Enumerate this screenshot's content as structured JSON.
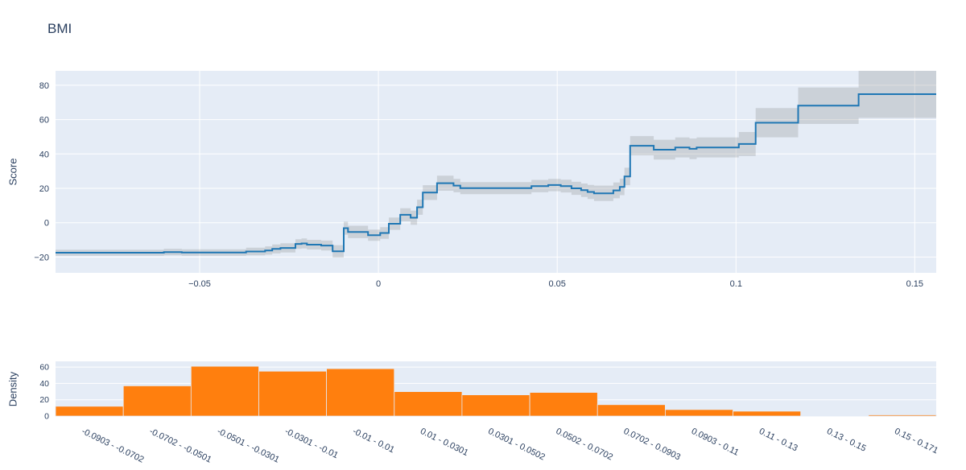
{
  "colors": {
    "line": "#1f77b4",
    "band": "rgba(128,128,128,0.25)",
    "bar": "#ff7f0e",
    "plot_bg": "#e5ecf6",
    "grid": "#ffffff",
    "text": "#2a3f5f"
  },
  "chart_data": [
    {
      "type": "line",
      "title": "BMI",
      "ylabel": "Score",
      "line_shape": "step-after",
      "legend": "none",
      "grid": "on",
      "x_range": [
        -0.0903,
        0.156
      ],
      "y_range": [
        -29.2,
        88.4
      ],
      "yticks": [
        -20,
        0,
        20,
        40,
        60,
        80
      ],
      "ytick_labels": [
        "−20",
        "0",
        "20",
        "40",
        "60",
        "80"
      ],
      "xticks": [
        -0.05,
        0,
        0.05,
        0.1,
        0.15
      ],
      "xtick_labels": [
        "−0.05",
        "0",
        "0.05",
        "0.1",
        "0.15"
      ],
      "series": [
        {
          "name": "Score",
          "x": [
            -0.0903,
            -0.06,
            -0.055,
            -0.037,
            -0.0317,
            -0.0297,
            -0.0274,
            -0.0232,
            -0.0215,
            -0.02,
            -0.016,
            -0.0128,
            -0.0097,
            -0.0085,
            -0.0029,
            0.0005,
            0.0029,
            0.0061,
            0.009,
            0.0108,
            0.0124,
            0.0164,
            0.021,
            0.0229,
            0.0428,
            0.0475,
            0.051,
            0.054,
            0.0567,
            0.0585,
            0.0603,
            0.0657,
            0.0675,
            0.0688,
            0.0704,
            0.077,
            0.083,
            0.087,
            0.089,
            0.1008,
            0.1055,
            0.1174,
            0.1343
          ],
          "y": [
            -17.5,
            -17.1,
            -17.4,
            -16.8,
            -16.2,
            -15.3,
            -14.7,
            -12.4,
            -12.1,
            -12.8,
            -13.3,
            -16.7,
            -3.2,
            -5.4,
            -7.3,
            -6.0,
            -0.6,
            4.6,
            2.9,
            9.0,
            17.5,
            23.0,
            21.6,
            20.1,
            21.3,
            21.9,
            21.3,
            20.0,
            18.9,
            17.9,
            17.1,
            18.8,
            20.8,
            26.9,
            44.8,
            42.5,
            43.8,
            43.0,
            43.8,
            45.8,
            58.2,
            68.1,
            74.8
          ],
          "ci": [
            1.8,
            1.9,
            1.9,
            2.2,
            2.4,
            2.6,
            2.7,
            2.8,
            2.9,
            2.8,
            2.9,
            3.6,
            3.8,
            3.6,
            3.3,
            3.4,
            3.6,
            3.8,
            4.1,
            4.4,
            4.3,
            4.4,
            3.9,
            3.5,
            3.6,
            3.6,
            3.7,
            3.8,
            3.9,
            4.1,
            4.5,
            4.6,
            4.8,
            5.1,
            5.6,
            5.8,
            5.8,
            6.0,
            5.8,
            7.0,
            8.5,
            10.6,
            13.8
          ]
        }
      ]
    },
    {
      "type": "bar",
      "ylabel": "Density",
      "grid": "on",
      "categories": [
        "-0.0903 - -0.0702",
        "-0.0702 - -0.0501",
        "-0.0501 - -0.0301",
        "-0.0301 - -0.01",
        "-0.01 - 0.01",
        "0.01 - 0.0301",
        "0.0301 - 0.0502",
        "0.0502 - 0.0702",
        "0.0702 - 0.0903",
        "0.0903 - 0.11",
        "0.11 - 0.13",
        "0.13 - 0.15",
        "0.15 - 0.171"
      ],
      "values": [
        12,
        37,
        61,
        55,
        58,
        30,
        26,
        29,
        14,
        8,
        6,
        0.5,
        1.5
      ],
      "yticks": [
        0,
        20,
        40,
        60
      ],
      "ytick_labels": [
        "0",
        "20",
        "40",
        "60"
      ],
      "ylim": [
        0,
        67
      ]
    }
  ]
}
